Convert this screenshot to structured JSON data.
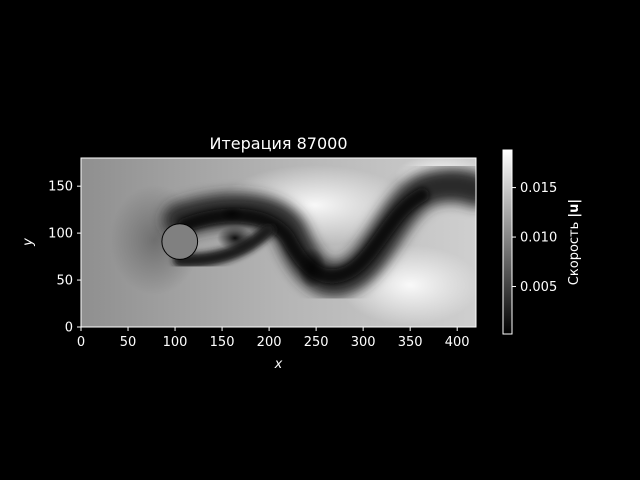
{
  "chart_data": {
    "type": "heatmap",
    "title": "Итерация 87000",
    "xlabel": "x",
    "ylabel": "y",
    "xlim": [
      0,
      420
    ],
    "ylim": [
      0,
      180
    ],
    "x_ticks": [
      0,
      50,
      100,
      150,
      200,
      250,
      300,
      350,
      400
    ],
    "y_ticks": [
      0,
      50,
      100,
      150
    ],
    "colormap": "gray",
    "cylinder": {
      "center": [
        105,
        91
      ],
      "radius": 19,
      "color": "#808080"
    },
    "colorbar": {
      "label_prefix": "Скорость ",
      "label_symbol": "|u|",
      "range": [
        0.0002,
        0.0188
      ],
      "ticks": [
        0.005,
        0.01,
        0.015
      ],
      "tick_labels": [
        "0.005",
        "0.010",
        "0.015"
      ]
    }
  }
}
